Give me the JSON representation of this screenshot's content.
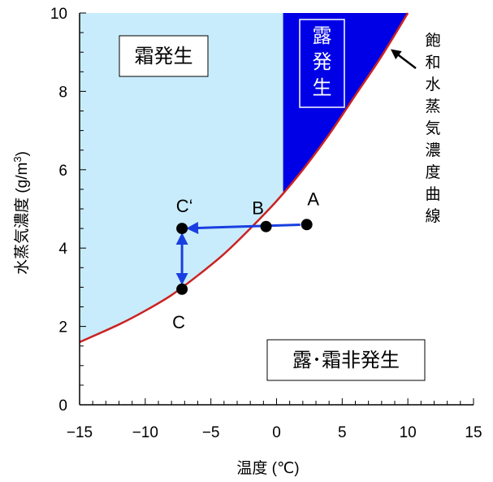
{
  "chart_data": {
    "type": "line",
    "xlabel": "温度 (℃)",
    "ylabel": "水蒸気濃度 (g/m³)",
    "ylabel_main": "水蒸気濃度 (g/m",
    "ylabel_sup": "3",
    "ylabel_close": ")",
    "xlim": [
      -15,
      15
    ],
    "ylim": [
      0,
      10
    ],
    "x_ticks": [
      -15,
      -10,
      -5,
      0,
      5,
      10,
      15
    ],
    "x_tick_labels": [
      "−15",
      "−10",
      "−5",
      "0",
      "5",
      "10",
      "15"
    ],
    "y_ticks": [
      0,
      2,
      4,
      6,
      8,
      10
    ],
    "y_tick_labels": [
      "0",
      "2",
      "4",
      "6",
      "8",
      "10"
    ],
    "saturation_curve": {
      "name": "飽和水蒸気濃度曲線",
      "x": [
        -15,
        -12,
        -10,
        -8,
        -6,
        -4,
        -2,
        0,
        2,
        4,
        6,
        8,
        10
      ],
      "y": [
        1.6,
        2.05,
        2.4,
        2.8,
        3.3,
        3.85,
        4.5,
        5.2,
        6.0,
        6.9,
        7.9,
        8.9,
        10.0
      ]
    },
    "regions": {
      "frost": "霜発生",
      "dew": "露発生",
      "none": "露･霜非発生"
    },
    "dew_region_x_start": 0.5,
    "points": [
      {
        "label": "A",
        "x": 2.3,
        "y": 4.6
      },
      {
        "label": "B",
        "x": -0.8,
        "y": 4.55
      },
      {
        "label": "C‘",
        "x": -7.2,
        "y": 4.5
      },
      {
        "label": "C",
        "x": -7.2,
        "y": 2.95
      }
    ],
    "arrows": [
      {
        "from": "A",
        "to": "C‘"
      },
      {
        "from": "C",
        "to": "C‘"
      }
    ],
    "colors": {
      "frost_region": "#c8ecfb",
      "dew_region": "#0000e6",
      "curve": "#cc2222",
      "arrow": "#1a3fe0",
      "point": "#000000"
    }
  }
}
